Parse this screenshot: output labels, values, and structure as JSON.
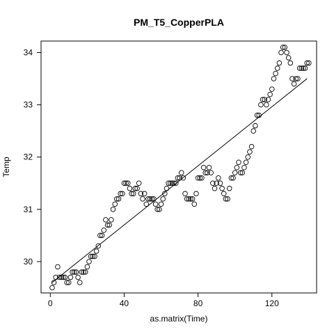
{
  "chart_data": {
    "type": "scatter",
    "title": "PM_T5_CopperPLA",
    "xlabel": "as.matrix(Time)",
    "ylabel": "Temp",
    "xlim": [
      -5,
      144.2
    ],
    "ylim": [
      29.4,
      34.22
    ],
    "x_ticks": [
      0,
      40,
      80,
      120
    ],
    "y_ticks": [
      30,
      31,
      32,
      33,
      34
    ],
    "grid": false,
    "legend": "none",
    "marker": "open-circle",
    "colors": {
      "points": "#000000",
      "line": "#000000",
      "axes": "#000000"
    },
    "points": [
      {
        "x": 1,
        "y": 29.5
      },
      {
        "x": 2,
        "y": 29.6
      },
      {
        "x": 3,
        "y": 29.7
      },
      {
        "x": 4,
        "y": 29.9
      },
      {
        "x": 5,
        "y": 29.7
      },
      {
        "x": 6,
        "y": 29.7
      },
      {
        "x": 7,
        "y": 29.7
      },
      {
        "x": 8,
        "y": 29.7
      },
      {
        "x": 9,
        "y": 29.6
      },
      {
        "x": 10,
        "y": 29.6
      },
      {
        "x": 11,
        "y": 29.7
      },
      {
        "x": 12,
        "y": 29.8
      },
      {
        "x": 13,
        "y": 29.8
      },
      {
        "x": 14,
        "y": 29.8
      },
      {
        "x": 15,
        "y": 29.7
      },
      {
        "x": 16,
        "y": 29.6
      },
      {
        "x": 17,
        "y": 29.8
      },
      {
        "x": 18,
        "y": 29.8
      },
      {
        "x": 19,
        "y": 29.8
      },
      {
        "x": 20,
        "y": 29.9
      },
      {
        "x": 21,
        "y": 30.0
      },
      {
        "x": 22,
        "y": 30.1
      },
      {
        "x": 23,
        "y": 30.1
      },
      {
        "x": 24,
        "y": 30.1
      },
      {
        "x": 25,
        "y": 30.2
      },
      {
        "x": 26,
        "y": 30.3
      },
      {
        "x": 27,
        "y": 30.5
      },
      {
        "x": 28,
        "y": 30.5
      },
      {
        "x": 29,
        "y": 30.6
      },
      {
        "x": 30,
        "y": 30.8
      },
      {
        "x": 31,
        "y": 30.7
      },
      {
        "x": 32,
        "y": 30.7
      },
      {
        "x": 33,
        "y": 30.8
      },
      {
        "x": 34,
        "y": 31.0
      },
      {
        "x": 35,
        "y": 31.1
      },
      {
        "x": 36,
        "y": 31.2
      },
      {
        "x": 37,
        "y": 31.2
      },
      {
        "x": 38,
        "y": 31.3
      },
      {
        "x": 39,
        "y": 31.3
      },
      {
        "x": 40,
        "y": 31.5
      },
      {
        "x": 41,
        "y": 31.5
      },
      {
        "x": 42,
        "y": 31.5
      },
      {
        "x": 43,
        "y": 31.4
      },
      {
        "x": 44,
        "y": 31.3
      },
      {
        "x": 45,
        "y": 31.3
      },
      {
        "x": 46,
        "y": 31.4
      },
      {
        "x": 47,
        "y": 31.4
      },
      {
        "x": 48,
        "y": 31.5
      },
      {
        "x": 49,
        "y": 31.3
      },
      {
        "x": 50,
        "y": 31.2
      },
      {
        "x": 51,
        "y": 31.3
      },
      {
        "x": 52,
        "y": 31.1
      },
      {
        "x": 53,
        "y": 31.2
      },
      {
        "x": 54,
        "y": 31.2
      },
      {
        "x": 55,
        "y": 31.2
      },
      {
        "x": 56,
        "y": 31.2
      },
      {
        "x": 57,
        "y": 31.1
      },
      {
        "x": 58,
        "y": 31.0
      },
      {
        "x": 59,
        "y": 31.0
      },
      {
        "x": 60,
        "y": 31.1
      },
      {
        "x": 61,
        "y": 31.2
      },
      {
        "x": 62,
        "y": 31.3
      },
      {
        "x": 63,
        "y": 31.4
      },
      {
        "x": 64,
        "y": 31.5
      },
      {
        "x": 65,
        "y": 31.5
      },
      {
        "x": 66,
        "y": 31.5
      },
      {
        "x": 67,
        "y": 31.5
      },
      {
        "x": 68,
        "y": 31.5
      },
      {
        "x": 69,
        "y": 31.6
      },
      {
        "x": 70,
        "y": 31.6
      },
      {
        "x": 71,
        "y": 31.7
      },
      {
        "x": 72,
        "y": 31.6
      },
      {
        "x": 73,
        "y": 31.3
      },
      {
        "x": 74,
        "y": 31.2
      },
      {
        "x": 75,
        "y": 31.2
      },
      {
        "x": 76,
        "y": 31.2
      },
      {
        "x": 77,
        "y": 31.2
      },
      {
        "x": 78,
        "y": 31.1
      },
      {
        "x": 79,
        "y": 31.3
      },
      {
        "x": 80,
        "y": 31.6
      },
      {
        "x": 81,
        "y": 31.6
      },
      {
        "x": 82,
        "y": 31.6
      },
      {
        "x": 83,
        "y": 31.8
      },
      {
        "x": 84,
        "y": 31.7
      },
      {
        "x": 85,
        "y": 31.7
      },
      {
        "x": 86,
        "y": 31.8
      },
      {
        "x": 87,
        "y": 31.7
      },
      {
        "x": 88,
        "y": 31.5
      },
      {
        "x": 89,
        "y": 31.4
      },
      {
        "x": 90,
        "y": 31.5
      },
      {
        "x": 91,
        "y": 31.6
      },
      {
        "x": 92,
        "y": 31.5
      },
      {
        "x": 93,
        "y": 31.4
      },
      {
        "x": 94,
        "y": 31.3
      },
      {
        "x": 95,
        "y": 31.2
      },
      {
        "x": 96,
        "y": 31.2
      },
      {
        "x": 97,
        "y": 31.4
      },
      {
        "x": 98,
        "y": 31.6
      },
      {
        "x": 99,
        "y": 31.6
      },
      {
        "x": 100,
        "y": 31.7
      },
      {
        "x": 101,
        "y": 31.8
      },
      {
        "x": 102,
        "y": 31.9
      },
      {
        "x": 103,
        "y": 31.7
      },
      {
        "x": 104,
        "y": 31.7
      },
      {
        "x": 105,
        "y": 31.8
      },
      {
        "x": 106,
        "y": 31.9
      },
      {
        "x": 107,
        "y": 32.0
      },
      {
        "x": 108,
        "y": 32.1
      },
      {
        "x": 109,
        "y": 32.2
      },
      {
        "x": 110,
        "y": 32.5
      },
      {
        "x": 111,
        "y": 32.6
      },
      {
        "x": 112,
        "y": 32.8
      },
      {
        "x": 113,
        "y": 32.8
      },
      {
        "x": 114,
        "y": 33.0
      },
      {
        "x": 115,
        "y": 33.1
      },
      {
        "x": 116,
        "y": 33.1
      },
      {
        "x": 117,
        "y": 33.0
      },
      {
        "x": 118,
        "y": 33.1
      },
      {
        "x": 119,
        "y": 33.2
      },
      {
        "x": 120,
        "y": 33.3
      },
      {
        "x": 121,
        "y": 33.5
      },
      {
        "x": 122,
        "y": 33.6
      },
      {
        "x": 123,
        "y": 33.7
      },
      {
        "x": 124,
        "y": 33.8
      },
      {
        "x": 125,
        "y": 34.0
      },
      {
        "x": 126,
        "y": 34.1
      },
      {
        "x": 127,
        "y": 34.1
      },
      {
        "x": 128,
        "y": 34.0
      },
      {
        "x": 129,
        "y": 33.9
      },
      {
        "x": 130,
        "y": 33.8
      },
      {
        "x": 131,
        "y": 33.5
      },
      {
        "x": 132,
        "y": 33.4
      },
      {
        "x": 133,
        "y": 33.5
      },
      {
        "x": 134,
        "y": 33.5
      },
      {
        "x": 135,
        "y": 33.7
      },
      {
        "x": 136,
        "y": 33.7
      },
      {
        "x": 137,
        "y": 33.7
      },
      {
        "x": 138,
        "y": 33.7
      },
      {
        "x": 139,
        "y": 33.8
      },
      {
        "x": 140,
        "y": 33.8
      }
    ],
    "trend_line": {
      "x": [
        1,
        139
      ],
      "y": [
        29.6,
        33.5
      ]
    }
  }
}
